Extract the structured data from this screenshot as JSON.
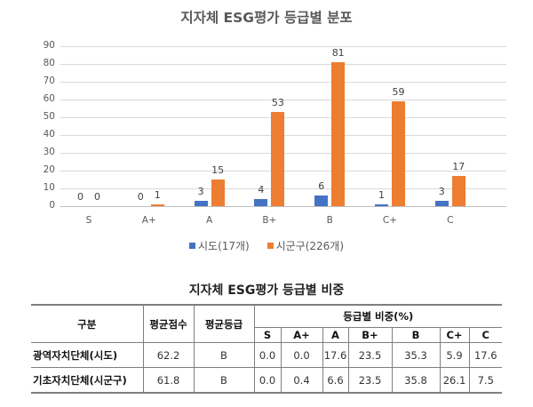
{
  "chart": {
    "title": "지자체 ESG평가 등급별 분포",
    "y_ticks": [
      "90",
      "80",
      "70",
      "60",
      "50",
      "40",
      "30",
      "20",
      "10",
      "0"
    ],
    "categories": [
      "S",
      "A+",
      "A",
      "B+",
      "B",
      "C+",
      "C"
    ],
    "legend": [
      {
        "name": "시도(17개)",
        "color": "#4472c4"
      },
      {
        "name": "시군구(226개)",
        "color": "#ed7d31"
      }
    ]
  },
  "chart_data": {
    "type": "bar",
    "title": "지자체 ESG평가 등급별 분포",
    "categories": [
      "S",
      "A+",
      "A",
      "B+",
      "B",
      "C+",
      "C"
    ],
    "series": [
      {
        "name": "시도(17개)",
        "color": "#4472c4",
        "values": [
          0,
          0,
          3,
          4,
          6,
          1,
          3
        ]
      },
      {
        "name": "시군구(226개)",
        "color": "#ed7d31",
        "values": [
          0,
          1,
          15,
          53,
          81,
          59,
          17
        ]
      }
    ],
    "xlabel": "",
    "ylabel": "",
    "ylim": [
      0,
      90
    ],
    "yticks": [
      0,
      10,
      20,
      30,
      40,
      50,
      60,
      70,
      80,
      90
    ],
    "grid": true,
    "legend_position": "bottom",
    "data_labels": true
  },
  "table": {
    "title": "지자체 ESG평가 등급별 비중",
    "headers": {
      "category": "구분",
      "avg_score": "평균점수",
      "avg_grade": "평균등급",
      "ratio_group": "등급별 비중(%)",
      "grades": [
        "S",
        "A+",
        "A",
        "B+",
        "B",
        "C+",
        "C"
      ]
    },
    "rows": [
      {
        "name": "광역자치단체(시도)",
        "avg_score": "62.2",
        "avg_grade": "B",
        "ratios": [
          "0.0",
          "0.0",
          "17.6",
          "23.5",
          "35.3",
          "5.9",
          "17.6"
        ]
      },
      {
        "name": "기초자치단체(시군구)",
        "avg_score": "61.8",
        "avg_grade": "B",
        "ratios": [
          "0.0",
          "0.4",
          "6.6",
          "23.5",
          "35.8",
          "26.1",
          "7.5"
        ]
      }
    ]
  }
}
